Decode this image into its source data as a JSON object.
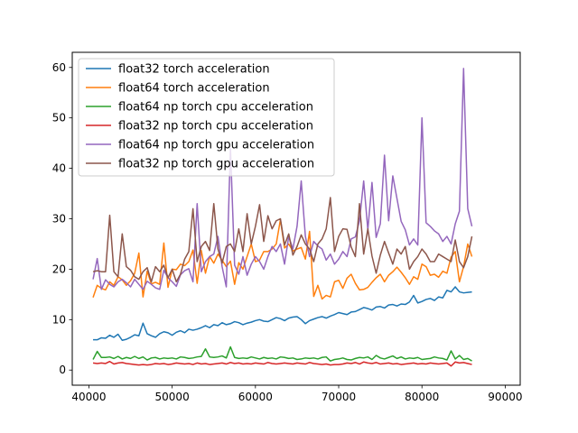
{
  "chart_data": {
    "type": "line",
    "title": "",
    "xlabel": "",
    "ylabel": "",
    "xlim": [
      38000,
      91800
    ],
    "ylim": [
      -3,
      63
    ],
    "grid": false,
    "legend_position": "top-left",
    "x_ticks": [
      40000,
      50000,
      60000,
      70000,
      80000,
      90000
    ],
    "y_ticks": [
      0,
      10,
      20,
      30,
      40,
      50,
      60
    ],
    "x_start": 40500,
    "x_step": 500,
    "series": [
      {
        "name": "float32 torch acceleration",
        "color": "#1f77b4",
        "values": [
          6.0,
          6.0,
          6.4,
          6.3,
          6.9,
          6.5,
          7.1,
          5.9,
          6.1,
          6.5,
          7.0,
          6.8,
          9.3,
          7.2,
          6.8,
          6.5,
          7.2,
          7.6,
          7.4,
          6.9,
          7.5,
          7.8,
          7.4,
          8.1,
          7.9,
          8.1,
          8.4,
          8.8,
          8.4,
          9.0,
          8.8,
          9.4,
          9.0,
          9.2,
          9.6,
          9.4,
          9.0,
          9.3,
          9.5,
          9.8,
          10.0,
          9.7,
          9.6,
          10.0,
          10.4,
          10.2,
          9.8,
          10.3,
          10.5,
          10.6,
          10.0,
          9.2,
          9.8,
          10.1,
          10.4,
          10.6,
          10.3,
          10.7,
          11.0,
          11.4,
          11.2,
          11.0,
          11.5,
          11.6,
          12.0,
          12.4,
          12.2,
          11.9,
          12.5,
          12.6,
          12.3,
          12.9,
          13.0,
          12.7,
          13.1,
          13.0,
          13.5,
          14.8,
          13.3,
          13.6,
          14.0,
          14.2,
          13.8,
          14.5,
          14.3,
          15.8,
          15.5,
          16.5,
          15.5,
          15.3,
          15.4,
          15.5
        ]
      },
      {
        "name": "float64 torch acceleration",
        "color": "#ff7f0e",
        "values": [
          14.4,
          16.8,
          16.2,
          15.9,
          17.5,
          16.8,
          18.5,
          17.9,
          16.8,
          17.7,
          19.2,
          23.2,
          14.5,
          19.6,
          17.1,
          17.4,
          17.0,
          25.2,
          16.4,
          20.0,
          19.9,
          21.0,
          20.7,
          21.5,
          23.8,
          17.2,
          23.7,
          19.2,
          22.5,
          21.2,
          23.0,
          21.8,
          20.5,
          21.6,
          17.0,
          21.3,
          20.0,
          22.5,
          25.0,
          21.5,
          21.8,
          23.5,
          23.5,
          24.0,
          25.0,
          29.8,
          24.2,
          25.0,
          23.6,
          24.0,
          24.3,
          22.0,
          27.5,
          14.6,
          16.8,
          14.1,
          14.8,
          14.5,
          17.5,
          17.8,
          16.2,
          18.2,
          19.0,
          17.2,
          15.9,
          16.0,
          16.4,
          17.4,
          18.3,
          19.0,
          17.5,
          18.8,
          19.5,
          20.4,
          19.4,
          18.3,
          17.0,
          18.5,
          18.0,
          21.0,
          20.5,
          18.8,
          19.0,
          18.4,
          19.6,
          19.2,
          22.4,
          23.5,
          17.5,
          20.5,
          25.0,
          22.5
        ]
      },
      {
        "name": "float64 np torch cpu acceleration",
        "color": "#2ca02c",
        "values": [
          2.1,
          3.7,
          2.5,
          2.5,
          2.6,
          2.3,
          2.7,
          2.2,
          2.5,
          2.3,
          2.7,
          2.3,
          2.6,
          2.0,
          2.4,
          2.5,
          2.2,
          2.4,
          2.3,
          2.4,
          2.2,
          2.6,
          2.5,
          2.3,
          2.4,
          2.6,
          2.7,
          4.2,
          2.6,
          2.5,
          2.6,
          2.8,
          2.4,
          4.6,
          2.5,
          2.3,
          2.4,
          2.3,
          2.6,
          2.4,
          2.2,
          2.5,
          2.3,
          2.4,
          2.2,
          2.6,
          2.5,
          2.3,
          2.4,
          2.1,
          2.2,
          2.4,
          2.3,
          2.4,
          2.2,
          2.5,
          2.6,
          1.8,
          2.1,
          2.2,
          2.4,
          2.1,
          2.0,
          2.3,
          2.5,
          2.4,
          2.6,
          2.1,
          2.9,
          2.4,
          2.2,
          2.5,
          2.8,
          2.3,
          2.6,
          2.2,
          2.4,
          2.3,
          2.5,
          2.1,
          2.2,
          2.3,
          2.6,
          2.4,
          2.3,
          2.0,
          3.8,
          2.2,
          2.9,
          2.1,
          2.3,
          1.8
        ]
      },
      {
        "name": "float32 np torch cpu acceleration",
        "color": "#d62728",
        "values": [
          1.4,
          1.3,
          1.4,
          1.3,
          1.7,
          1.2,
          1.4,
          1.5,
          1.3,
          1.2,
          1.1,
          1.0,
          1.1,
          1.0,
          1.1,
          1.3,
          1.2,
          1.3,
          1.1,
          1.2,
          1.4,
          1.3,
          1.2,
          1.3,
          1.1,
          1.4,
          1.2,
          1.3,
          1.1,
          1.2,
          1.3,
          1.4,
          1.2,
          1.5,
          1.3,
          1.4,
          1.2,
          1.3,
          1.2,
          1.4,
          1.3,
          1.2,
          1.5,
          1.3,
          1.2,
          1.3,
          1.4,
          1.3,
          1.2,
          1.4,
          1.3,
          1.2,
          1.5,
          1.3,
          1.2,
          1.1,
          1.2,
          1.0,
          1.1,
          1.1,
          1.2,
          1.4,
          1.3,
          1.5,
          1.2,
          1.6,
          1.4,
          1.3,
          1.5,
          1.2,
          1.3,
          1.4,
          1.2,
          1.3,
          1.1,
          1.2,
          1.3,
          1.4,
          1.2,
          1.3,
          1.2,
          1.4,
          1.3,
          1.2,
          1.3,
          1.4,
          0.8,
          1.6,
          1.4,
          1.5,
          1.3,
          1.1
        ]
      },
      {
        "name": "float64 np torch gpu acceleration",
        "color": "#9467bd",
        "values": [
          18.0,
          22.1,
          16.0,
          17.9,
          17.0,
          16.5,
          17.5,
          18.0,
          17.3,
          16.5,
          18.0,
          17.0,
          16.0,
          17.6,
          17.0,
          16.3,
          16.0,
          19.8,
          18.3,
          17.5,
          16.6,
          18.9,
          19.7,
          20.1,
          17.5,
          33.0,
          19.5,
          21.5,
          22.5,
          23.0,
          26.5,
          20.5,
          16.5,
          44.0,
          20.8,
          19.0,
          22.5,
          18.8,
          21.0,
          22.5,
          21.5,
          20.0,
          22.5,
          24.5,
          23.5,
          25.0,
          21.0,
          26.5,
          24.0,
          28.5,
          37.5,
          26.5,
          22.5,
          25.5,
          24.6,
          24.0,
          21.8,
          23.0,
          21.0,
          22.0,
          23.5,
          22.5,
          26.0,
          26.4,
          29.6,
          37.5,
          27.8,
          37.2,
          26.3,
          29.0,
          42.6,
          29.6,
          38.5,
          34.0,
          29.5,
          27.8,
          24.8,
          26.0,
          24.8,
          50.0,
          29.2,
          28.5,
          27.6,
          27.0,
          25.5,
          26.5,
          25.0,
          29.0,
          31.5,
          59.8,
          32.0,
          28.5
        ]
      },
      {
        "name": "float32 np torch gpu acceleration",
        "color": "#8c564b",
        "values": [
          19.5,
          19.7,
          19.5,
          19.5,
          30.7,
          19.5,
          18.5,
          27.0,
          20.5,
          19.8,
          18.5,
          18.0,
          19.5,
          20.3,
          17.5,
          20.5,
          19.5,
          20.8,
          18.3,
          20.0,
          17.5,
          19.0,
          22.0,
          23.5,
          32.0,
          21.5,
          24.5,
          25.5,
          23.7,
          33.0,
          24.0,
          21.2,
          24.5,
          25.0,
          23.5,
          28.0,
          23.5,
          31.0,
          25.0,
          28.5,
          32.8,
          25.5,
          30.6,
          28.0,
          29.6,
          30.0,
          24.8,
          27.0,
          22.8,
          24.5,
          26.8,
          25.0,
          24.0,
          21.5,
          25.0,
          26.0,
          28.0,
          34.2,
          23.5,
          26.5,
          28.0,
          27.9,
          24.4,
          22.5,
          33.0,
          23.0,
          28.0,
          22.6,
          19.2,
          22.8,
          25.5,
          23.2,
          21.0,
          24.0,
          23.0,
          24.5,
          20.0,
          21.5,
          22.5,
          24.0,
          23.0,
          21.5,
          21.5,
          23.0,
          22.5,
          22.0,
          21.5,
          25.8,
          21.5,
          20.3,
          22.5,
          26.5
        ]
      }
    ]
  }
}
